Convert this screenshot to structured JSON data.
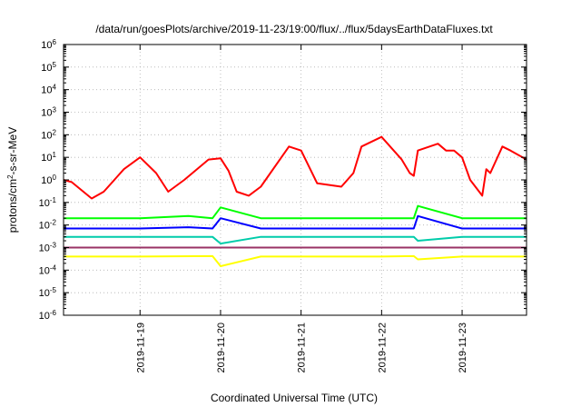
{
  "chart_data": {
    "type": "line",
    "title": "/data/run/goesPlots/archive/2019-11-23/19:00/flux/../flux/5daysEarthDataFluxes.txt",
    "xlabel": "Coordinated Universal Time (UTC)",
    "ylabel": {
      "prefix": "protons/cm",
      "sup": "2",
      "suffix": "-s-sr-MeV"
    },
    "yscale": "log",
    "ylim": [
      1e-06,
      1000000.0
    ],
    "xlim": [
      -0.95,
      4.8
    ],
    "x_unit": "days relative to 2019-11-19 00:00 UTC",
    "xticks": [
      {
        "x": 0,
        "label": "2019-11-19"
      },
      {
        "x": 1,
        "label": "2019-11-20"
      },
      {
        "x": 2,
        "label": "2019-11-21"
      },
      {
        "x": 3,
        "label": "2019-11-22"
      },
      {
        "x": 4,
        "label": "2019-11-23"
      }
    ],
    "yticks": [
      {
        "v": 1e-06,
        "base": "10",
        "exp": "-6"
      },
      {
        "v": 1e-05,
        "base": "10",
        "exp": "-5"
      },
      {
        "v": 0.0001,
        "base": "10",
        "exp": "-4"
      },
      {
        "v": 0.001,
        "base": "10",
        "exp": "-3"
      },
      {
        "v": 0.01,
        "base": "10",
        "exp": "-2"
      },
      {
        "v": 0.1,
        "base": "10",
        "exp": "-1"
      },
      {
        "v": 1,
        "base": "10",
        "exp": "0"
      },
      {
        "v": 10,
        "base": "10",
        "exp": "1"
      },
      {
        "v": 100,
        "base": "10",
        "exp": "2"
      },
      {
        "v": 1000,
        "base": "10",
        "exp": "3"
      },
      {
        "v": 10000,
        "base": "10",
        "exp": "4"
      },
      {
        "v": 100000,
        "base": "10",
        "exp": "5"
      },
      {
        "v": 1000000,
        "base": "10",
        "exp": "6"
      }
    ],
    "grid": true,
    "series": [
      {
        "color": "#ffff00",
        "x": [
          -0.95,
          0,
          0.9,
          1.0,
          1.5,
          2,
          3,
          3.4,
          3.45,
          4,
          4.8
        ],
        "y": [
          0.0004,
          0.0004,
          0.00042,
          0.00015,
          0.0004,
          0.0004,
          0.0004,
          0.00042,
          0.0003,
          0.0004,
          0.0004
        ]
      },
      {
        "color": "#993366",
        "x": [
          -0.95,
          0,
          1,
          2,
          3,
          4,
          4.8
        ],
        "y": [
          0.001,
          0.001,
          0.001,
          0.001,
          0.001,
          0.001,
          0.001
        ]
      },
      {
        "color": "#00ccaa",
        "x": [
          -0.95,
          0,
          0.9,
          1.0,
          1.5,
          2,
          3,
          3.4,
          3.45,
          4,
          4.8
        ],
        "y": [
          0.003,
          0.003,
          0.003,
          0.0015,
          0.003,
          0.003,
          0.003,
          0.003,
          0.002,
          0.003,
          0.003
        ]
      },
      {
        "color": "#00ff00",
        "x": [
          -0.95,
          0,
          0.6,
          0.9,
          1.0,
          1.5,
          2,
          3,
          3.4,
          3.45,
          4,
          4.8
        ],
        "y": [
          0.02,
          0.02,
          0.025,
          0.02,
          0.06,
          0.02,
          0.02,
          0.02,
          0.02,
          0.07,
          0.02,
          0.02
        ]
      },
      {
        "color": "#0000ff",
        "x": [
          -0.95,
          0,
          0.6,
          0.9,
          1.0,
          1.5,
          2,
          3,
          3.4,
          3.45,
          4,
          4.8
        ],
        "y": [
          0.007,
          0.007,
          0.008,
          0.007,
          0.02,
          0.007,
          0.007,
          0.007,
          0.007,
          0.025,
          0.007,
          0.007
        ]
      },
      {
        "color": "#ff0000",
        "x": [
          -0.95,
          -0.85,
          -0.6,
          -0.45,
          -0.2,
          0,
          0.2,
          0.35,
          0.55,
          0.85,
          1.0,
          1.1,
          1.2,
          1.35,
          1.5,
          1.85,
          2.0,
          2.2,
          2.5,
          2.65,
          2.75,
          3.0,
          3.25,
          3.35,
          3.4,
          3.45,
          3.7,
          3.8,
          3.9,
          4.0,
          4.1,
          4.25,
          4.3,
          4.35,
          4.5,
          4.6,
          4.8
        ],
        "y": [
          1.0,
          0.8,
          0.15,
          0.3,
          3.0,
          10.0,
          2.0,
          0.3,
          1.0,
          8.0,
          9.0,
          2.5,
          0.3,
          0.2,
          0.5,
          30.0,
          20.0,
          0.7,
          0.5,
          2.0,
          30.0,
          80.0,
          8.0,
          2.0,
          1.5,
          20.0,
          40.0,
          20.0,
          20.0,
          10.0,
          1.0,
          0.2,
          3.0,
          2.0,
          30.0,
          20.0,
          8.0
        ]
      }
    ]
  }
}
